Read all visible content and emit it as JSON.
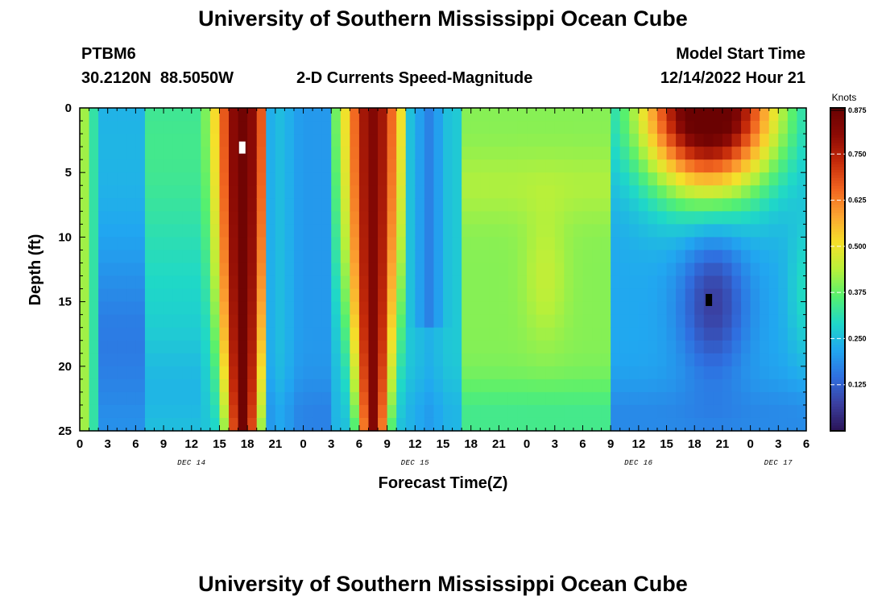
{
  "page": {
    "title": "University of Southern Mississippi Ocean Cube",
    "footer_title": "University of Southern Mississippi Ocean Cube",
    "station_id": "PTBM6",
    "location": "30.2120N  88.5050W",
    "plot_title": "2-D Currents Speed-Magnitude",
    "model_start_label": "Model Start Time",
    "model_start_value": "12/14/2022 Hour 21"
  },
  "chart_data": {
    "type": "heatmap",
    "title": "2-D Currents Speed-Magnitude",
    "xlabel": "Forecast Time(Z)",
    "ylabel": "Depth (ft)",
    "x_tick_labels": [
      "0",
      "3",
      "6",
      "9",
      "12",
      "15",
      "18",
      "21",
      "0",
      "3",
      "6",
      "9",
      "12",
      "15",
      "18",
      "21",
      "0",
      "3",
      "6",
      "9",
      "12",
      "15",
      "18",
      "21",
      "0",
      "3",
      "6"
    ],
    "x_day_labels": [
      {
        "label": "DEC 14",
        "hour": 12
      },
      {
        "label": "DEC 15",
        "hour": 36
      },
      {
        "label": "DEC 16",
        "hour": 60
      },
      {
        "label": "DEC 17",
        "hour": 75
      }
    ],
    "x_range_hours": [
      0,
      78
    ],
    "y_ticks": [
      0,
      5,
      10,
      15,
      20,
      25
    ],
    "y_range_ft": [
      0,
      25
    ],
    "y_reversed": true,
    "colorbar": {
      "label": "Knots",
      "ticks": [
        "0.875",
        "0.750",
        "0.625",
        "0.500",
        "0.375",
        "0.250",
        "0.125"
      ],
      "tick_values": [
        0.875,
        0.75,
        0.625,
        0.5,
        0.375,
        0.25,
        0.125
      ],
      "range": [
        0,
        0.875
      ],
      "colors": [
        "#2a1356",
        "#3b3fa0",
        "#2f6fe0",
        "#21a7f0",
        "#1fd8c8",
        "#56f06f",
        "#b8f03a",
        "#f5e02a",
        "#fca431",
        "#f0631f",
        "#c42a0a",
        "#8b0a05",
        "#6a0202"
      ]
    },
    "grid": false,
    "legend_position": "right",
    "description": "Current speed (knots) vs forecast hour (0-78 from Dec 14 00Z) and depth (0-25 ft). High speeds ~0.85 kt near hours 16-19 and 30-33; low speeds ~0.15 kt near hours 1-5 and 37-38; surface maximum ~0.85 kt near hours 63-70; minimum ~0.05 kt near hour 68 at 15 ft depth.",
    "features": [
      {
        "hour": 17.5,
        "depth_ft": 12,
        "speed_kt": 0.87
      },
      {
        "hour": 31.5,
        "depth_ft": 12,
        "speed_kt": 0.82
      },
      {
        "hour": 4.5,
        "depth_ft": 15,
        "speed_kt": 0.18
      },
      {
        "hour": 37.5,
        "depth_ft": 10,
        "speed_kt": 0.15
      },
      {
        "hour": 67.5,
        "depth_ft": 1,
        "speed_kt": 0.85
      },
      {
        "hour": 68,
        "depth_ft": 15,
        "speed_kt": 0.05
      },
      {
        "hour": 50,
        "depth_ft": 13,
        "speed_kt": 0.42
      }
    ]
  }
}
